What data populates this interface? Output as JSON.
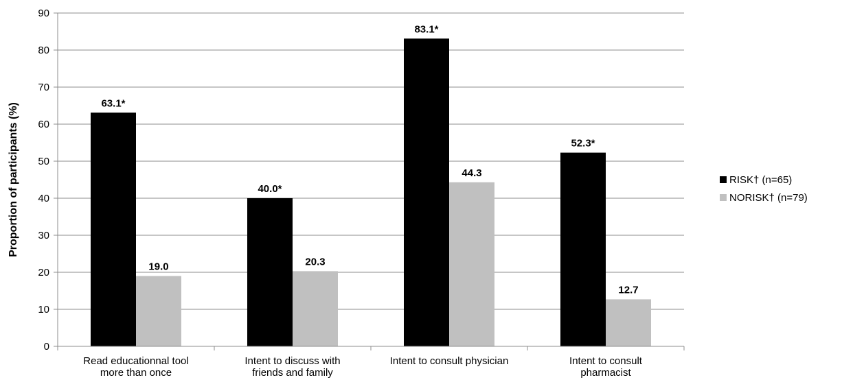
{
  "chart_data": {
    "type": "bar",
    "title": "",
    "xlabel": "",
    "ylabel": "Proportion of participants (%)",
    "ylim": [
      0,
      90
    ],
    "yticks": [
      0,
      10,
      20,
      30,
      40,
      50,
      60,
      70,
      80,
      90
    ],
    "grid": true,
    "legend_position": "right",
    "categories": [
      [
        "Read educationnal tool",
        "more than once"
      ],
      [
        "Intent to discuss with",
        "friends and family"
      ],
      [
        "Intent to consult physician"
      ],
      [
        "Intent to consult",
        "pharmacist"
      ]
    ],
    "series": [
      {
        "name": "RISK†  (n=65)",
        "color": "#000000",
        "values": [
          63.1,
          40.0,
          83.1,
          52.3
        ],
        "labels": [
          "63.1*",
          "40.0*",
          "83.1*",
          "52.3*"
        ]
      },
      {
        "name": "NORISK†  (n=79)",
        "color": "#c0c0c0",
        "values": [
          19.0,
          20.3,
          44.3,
          12.7
        ],
        "labels": [
          "19.0",
          "20.3",
          "44.3",
          "12.7"
        ]
      }
    ]
  }
}
